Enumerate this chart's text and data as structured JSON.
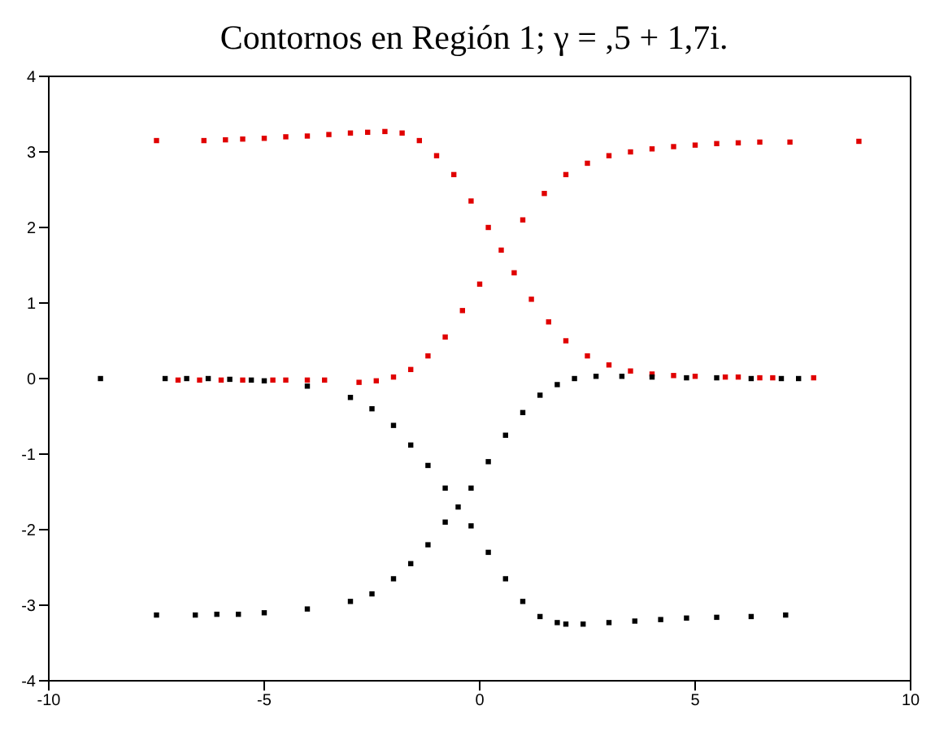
{
  "chart_data": {
    "type": "scatter",
    "title": "Contornos en Región 1; γ = ,5 + 1,7i.",
    "xlim": [
      -10,
      10
    ],
    "xticks": [
      -10,
      -5,
      0,
      5,
      10
    ],
    "ylim": [
      -4,
      4
    ],
    "yticks": [
      -4,
      -3,
      -2,
      -1,
      0,
      1,
      2,
      3,
      4
    ],
    "grid": false,
    "marker": "square",
    "series": [
      {
        "color": "#e00000",
        "x": [
          -7.5,
          -6.4,
          -5.9,
          -5.5,
          -5.0,
          -4.5,
          -4.0,
          -3.5,
          -3.0,
          -2.6,
          -2.2,
          -1.8,
          -1.4,
          -1.0,
          -0.6,
          -0.2,
          0.2,
          0.5,
          0.8,
          1.2,
          1.6,
          2.0,
          2.5,
          3.0,
          3.5,
          4.0,
          4.5,
          5.0,
          5.7,
          6.0,
          6.5,
          6.8,
          7.75
        ],
        "values": [
          3.15,
          3.15,
          3.16,
          3.17,
          3.18,
          3.2,
          3.21,
          3.23,
          3.25,
          3.26,
          3.27,
          3.25,
          3.15,
          2.95,
          2.7,
          2.35,
          2.0,
          1.7,
          1.4,
          1.05,
          0.75,
          0.5,
          0.3,
          0.18,
          0.1,
          0.06,
          0.04,
          0.03,
          0.02,
          0.02,
          0.01,
          0.01,
          0.01
        ]
      },
      {
        "color": "#e00000",
        "x": [
          -7.0,
          -6.5,
          -6.0,
          -5.5,
          -4.8,
          -4.5,
          -4.0,
          -3.6,
          -2.8,
          -2.4,
          -2.0,
          -1.6,
          -1.2,
          -0.8,
          -0.4,
          0,
          1.0,
          1.5,
          2.0,
          2.5,
          3.0,
          3.5,
          4.0,
          4.5,
          5.0,
          5.5,
          6.0,
          6.5,
          7.2,
          8.8
        ],
        "values": [
          -0.02,
          -0.02,
          -0.02,
          -0.02,
          -0.02,
          -0.02,
          -0.02,
          -0.02,
          -0.05,
          -0.03,
          0.02,
          0.12,
          0.3,
          0.55,
          0.9,
          1.25,
          2.1,
          2.45,
          2.7,
          2.85,
          2.95,
          3.0,
          3.04,
          3.07,
          3.09,
          3.11,
          3.12,
          3.13,
          3.13,
          3.14
        ]
      },
      {
        "color": "#000000",
        "x": [
          -7.5,
          -6.6,
          -6.1,
          -5.6,
          -5.0,
          -4.0,
          -3.0,
          -2.5,
          -2.0,
          -1.6,
          -1.2,
          -0.8,
          -0.5,
          -0.2,
          0.2,
          0.6,
          1.0,
          1.4,
          1.8,
          2.2,
          2.7,
          3.3,
          4.0,
          4.8,
          5.5,
          6.3,
          7.0,
          7.4
        ],
        "values": [
          -3.13,
          -3.13,
          -3.12,
          -3.12,
          -3.1,
          -3.05,
          -2.95,
          -2.85,
          -2.65,
          -2.45,
          -2.2,
          -1.9,
          -1.7,
          -1.45,
          -1.1,
          -0.75,
          -0.45,
          -0.22,
          -0.08,
          0.0,
          0.03,
          0.03,
          0.02,
          0.01,
          0.01,
          0.0,
          0.0,
          0.0
        ]
      },
      {
        "color": "#000000",
        "x": [
          -8.8,
          -7.3,
          -6.8,
          -6.3,
          -5.8,
          -5.3,
          -5.0,
          -4.0,
          -3.0,
          -2.5,
          -2.0,
          -1.6,
          -1.2,
          -0.8,
          -0.2,
          0.2,
          0.6,
          1.0,
          1.4,
          1.8,
          2.0,
          2.4,
          3.0,
          3.6,
          4.2,
          4.8,
          5.5,
          6.3,
          7.1
        ],
        "values": [
          0,
          0,
          0,
          0,
          -0.01,
          -0.02,
          -0.03,
          -0.1,
          -0.25,
          -0.4,
          -0.62,
          -0.88,
          -1.15,
          -1.45,
          -1.95,
          -2.3,
          -2.65,
          -2.95,
          -3.15,
          -3.23,
          -3.25,
          -3.25,
          -3.23,
          -3.21,
          -3.19,
          -3.17,
          -3.16,
          -3.15,
          -3.13
        ]
      }
    ]
  }
}
